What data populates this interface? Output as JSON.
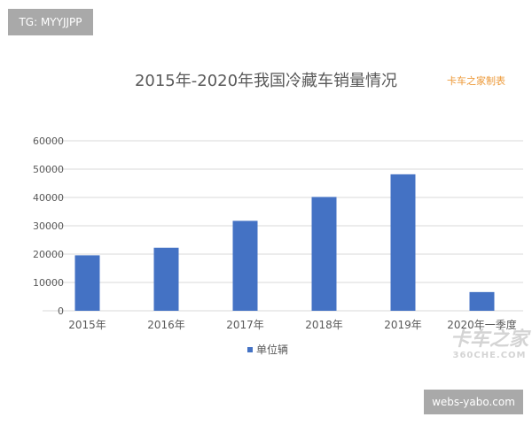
{
  "badges": {
    "top_left": "TG: MYYJJPP",
    "bottom_right": "webs-yabo.com"
  },
  "watermark": {
    "logo_text": "卡车之家",
    "logo_sub": "360CHE.COM"
  },
  "chart_data": {
    "type": "bar",
    "title": "2015年-2020年我国冷藏车销量情况",
    "subtitle": "卡车之家制表",
    "categories": [
      "2015年",
      "2016年",
      "2017年",
      "2018年",
      "2019年",
      "2020年一季度"
    ],
    "series": [
      {
        "name": "单位辆",
        "values": [
          19570,
          22260,
          31740,
          40170,
          48170,
          6610
        ],
        "color": "#4472c4"
      }
    ],
    "ylim": [
      0,
      60000
    ],
    "yticks": [
      "0",
      "10000",
      "20000",
      "30000",
      "40000",
      "50000",
      "60000"
    ],
    "grid": true,
    "legend": "bottom",
    "colors": {
      "title": "#595959",
      "subtitle": "#ed9a3a",
      "grid": "#d9d9d9",
      "tick_text": "#595959"
    }
  }
}
